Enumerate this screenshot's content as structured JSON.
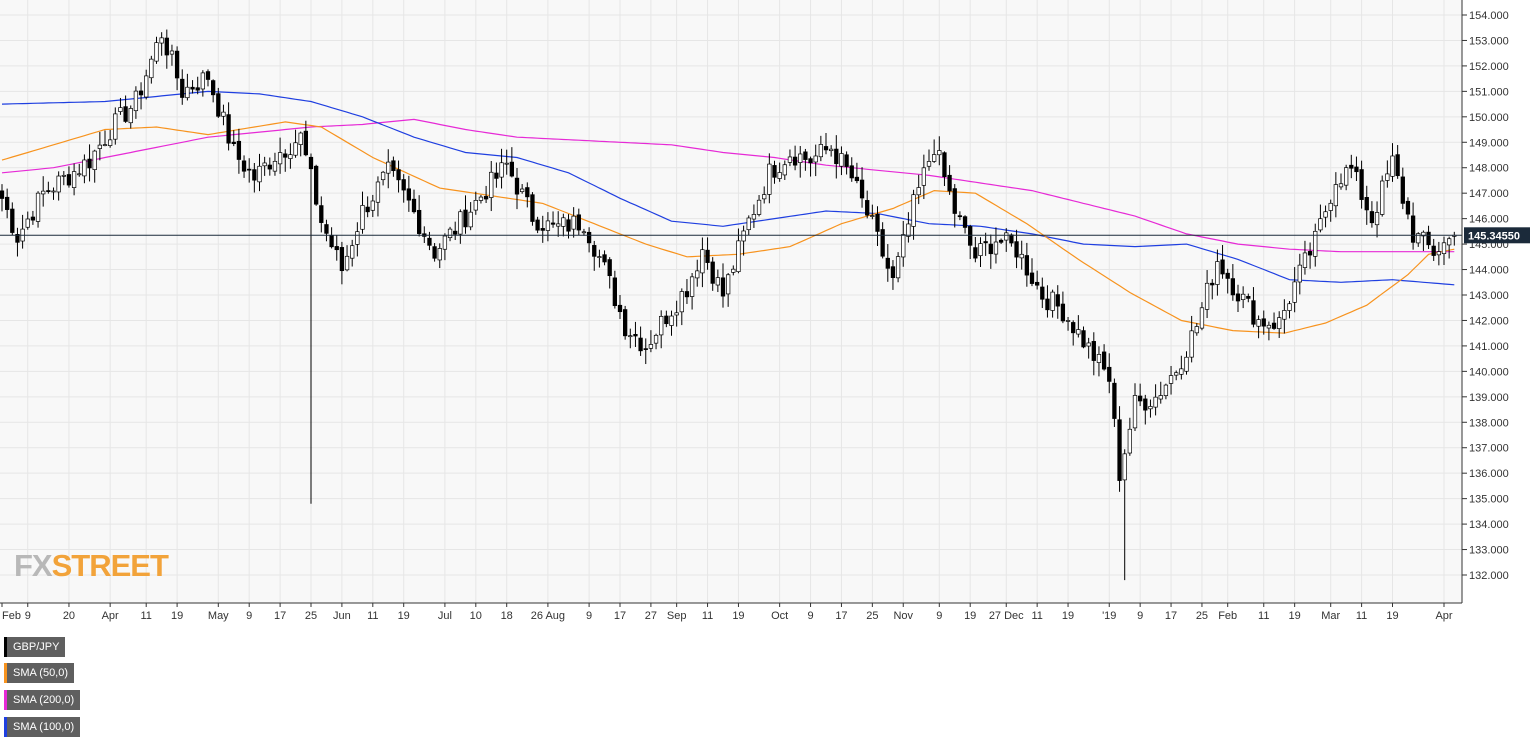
{
  "symbol": "GBP/JPY",
  "watermark": {
    "part1": "FX",
    "part2": "STREET"
  },
  "colors": {
    "background": "#f8f8f8",
    "grid": "#e6e6e6",
    "candle_up_fill": "#ffffff",
    "candle_down_fill": "#000000",
    "candle_outline": "#000000",
    "sma50": "#f7931e",
    "sma100": "#1f3fe0",
    "sma200": "#e62ad6",
    "price_tag": "#1b2a3a"
  },
  "legend": [
    {
      "label": "GBP/JPY",
      "color": "#000000"
    },
    {
      "label": "SMA (50,0)",
      "color": "#f7931e"
    },
    {
      "label": "SMA (200,0)",
      "color": "#e62ad6"
    },
    {
      "label": "SMA (100,0)",
      "color": "#1f3fe0"
    }
  ],
  "last_price_label": "145.34550",
  "chart_data": {
    "type": "candlestick",
    "title": "",
    "grid": true,
    "legend_position": "top-left",
    "y_axis_position": "right",
    "ylim": [
      131.5,
      154.5
    ],
    "y_ticks": [
      "132.000",
      "133.000",
      "134.000",
      "135.000",
      "136.000",
      "137.000",
      "138.000",
      "139.000",
      "140.000",
      "141.000",
      "142.000",
      "143.000",
      "144.000",
      "145.000",
      "146.000",
      "147.000",
      "148.000",
      "149.000",
      "150.000",
      "151.000",
      "152.000",
      "153.000",
      "154.000"
    ],
    "x_labels": [
      {
        "label": "Feb",
        "i": 0
      },
      {
        "label": "9",
        "i": 5
      },
      {
        "label": "20",
        "i": 13
      },
      {
        "label": "Apr",
        "i": 21
      },
      {
        "label": "11",
        "i": 28
      },
      {
        "label": "19",
        "i": 34
      },
      {
        "label": "May",
        "i": 42
      },
      {
        "label": "9",
        "i": 48
      },
      {
        "label": "17",
        "i": 54
      },
      {
        "label": "25",
        "i": 60
      },
      {
        "label": "Jun",
        "i": 66
      },
      {
        "label": "11",
        "i": 72
      },
      {
        "label": "19",
        "i": 78
      },
      {
        "label": "Jul",
        "i": 86
      },
      {
        "label": "10",
        "i": 92
      },
      {
        "label": "18",
        "i": 98
      },
      {
        "label": "26 Aug",
        "i": 106
      },
      {
        "label": "9",
        "i": 114
      },
      {
        "label": "17",
        "i": 120
      },
      {
        "label": "27",
        "i": 126
      },
      {
        "label": "Sep",
        "i": 131
      },
      {
        "label": "11",
        "i": 137
      },
      {
        "label": "19",
        "i": 143
      },
      {
        "label": "Oct",
        "i": 151
      },
      {
        "label": "9",
        "i": 157
      },
      {
        "label": "17",
        "i": 163
      },
      {
        "label": "25",
        "i": 169
      },
      {
        "label": "Nov",
        "i": 175
      },
      {
        "label": "9",
        "i": 182
      },
      {
        "label": "19",
        "i": 188
      },
      {
        "label": "27 Dec",
        "i": 195
      },
      {
        "label": "11",
        "i": 201
      },
      {
        "label": "19",
        "i": 207
      },
      {
        "label": "'19",
        "i": 215
      },
      {
        "label": "9",
        "i": 221
      },
      {
        "label": "17",
        "i": 227
      },
      {
        "label": "25",
        "i": 233
      },
      {
        "label": "Feb",
        "i": 238
      },
      {
        "label": "11",
        "i": 245
      },
      {
        "label": "19",
        "i": 251
      },
      {
        "label": "Mar",
        "i": 258
      },
      {
        "label": "11",
        "i": 264
      },
      {
        "label": "19",
        "i": 270
      },
      {
        "label": "Apr",
        "i": 280
      }
    ],
    "close_anchors": [
      [
        0,
        146.8
      ],
      [
        3,
        145.3
      ],
      [
        8,
        147.0
      ],
      [
        13,
        147.7
      ],
      [
        17,
        148.3
      ],
      [
        21,
        149.5
      ],
      [
        26,
        150.6
      ],
      [
        31,
        153.3
      ],
      [
        35,
        151.0
      ],
      [
        40,
        151.6
      ],
      [
        45,
        148.6
      ],
      [
        49,
        147.6
      ],
      [
        53,
        148.5
      ],
      [
        58,
        149.2
      ],
      [
        62,
        145.9
      ],
      [
        66,
        144.0
      ],
      [
        70,
        146.3
      ],
      [
        75,
        147.8
      ],
      [
        79,
        146.6
      ],
      [
        84,
        144.7
      ],
      [
        88,
        145.6
      ],
      [
        93,
        146.9
      ],
      [
        98,
        148.1
      ],
      [
        103,
        146.1
      ],
      [
        107,
        145.6
      ],
      [
        113,
        145.9
      ],
      [
        117,
        144.0
      ],
      [
        121,
        141.8
      ],
      [
        125,
        141.0
      ],
      [
        129,
        142.2
      ],
      [
        133,
        143.3
      ],
      [
        136,
        144.8
      ],
      [
        140,
        143.0
      ],
      [
        145,
        145.9
      ],
      [
        149,
        147.8
      ],
      [
        153,
        148.6
      ],
      [
        157,
        148.3
      ],
      [
        161,
        148.8
      ],
      [
        165,
        147.6
      ],
      [
        169,
        145.7
      ],
      [
        173,
        143.5
      ],
      [
        177,
        146.5
      ],
      [
        181,
        148.9
      ],
      [
        185,
        146.3
      ],
      [
        189,
        144.5
      ],
      [
        193,
        145.2
      ],
      [
        197,
        144.8
      ],
      [
        202,
        143.0
      ],
      [
        206,
        142.4
      ],
      [
        210,
        141.2
      ],
      [
        215,
        139.7
      ],
      [
        217,
        136.0
      ],
      [
        220,
        138.7
      ],
      [
        224,
        139.0
      ],
      [
        228,
        140.1
      ],
      [
        232,
        141.8
      ],
      [
        236,
        144.4
      ],
      [
        240,
        143.1
      ],
      [
        244,
        142.0
      ],
      [
        248,
        141.9
      ],
      [
        251,
        143.4
      ],
      [
        255,
        145.1
      ],
      [
        259,
        147.6
      ],
      [
        262,
        147.9
      ],
      [
        266,
        146.0
      ],
      [
        270,
        148.2
      ],
      [
        274,
        145.4
      ],
      [
        278,
        144.7
      ],
      [
        282,
        145.3
      ]
    ],
    "count": 283,
    "last_close": 145.3455,
    "spikes": [
      {
        "i": 60,
        "low": 134.8
      },
      {
        "i": 218,
        "low": 131.8
      }
    ],
    "sma50_anchors": [
      [
        0,
        148.3
      ],
      [
        20,
        149.5
      ],
      [
        30,
        149.6
      ],
      [
        40,
        149.3
      ],
      [
        55,
        149.8
      ],
      [
        62,
        149.6
      ],
      [
        72,
        148.4
      ],
      [
        85,
        147.2
      ],
      [
        95,
        146.9
      ],
      [
        105,
        146.6
      ],
      [
        115,
        145.8
      ],
      [
        125,
        145.0
      ],
      [
        133,
        144.5
      ],
      [
        143,
        144.6
      ],
      [
        153,
        144.9
      ],
      [
        163,
        145.8
      ],
      [
        173,
        146.4
      ],
      [
        181,
        147.1
      ],
      [
        189,
        147.0
      ],
      [
        199,
        145.8
      ],
      [
        209,
        144.4
      ],
      [
        219,
        143.1
      ],
      [
        229,
        142.0
      ],
      [
        239,
        141.6
      ],
      [
        249,
        141.5
      ],
      [
        257,
        141.9
      ],
      [
        265,
        142.6
      ],
      [
        273,
        143.8
      ],
      [
        277,
        144.6
      ],
      [
        282,
        144.8
      ]
    ],
    "sma100_anchors": [
      [
        0,
        150.5
      ],
      [
        20,
        150.6
      ],
      [
        30,
        150.8
      ],
      [
        40,
        151.0
      ],
      [
        50,
        150.9
      ],
      [
        60,
        150.6
      ],
      [
        70,
        150.0
      ],
      [
        80,
        149.2
      ],
      [
        90,
        148.6
      ],
      [
        100,
        148.4
      ],
      [
        110,
        147.8
      ],
      [
        120,
        146.8
      ],
      [
        130,
        145.9
      ],
      [
        140,
        145.7
      ],
      [
        150,
        146.0
      ],
      [
        160,
        146.3
      ],
      [
        170,
        146.2
      ],
      [
        180,
        145.8
      ],
      [
        190,
        145.7
      ],
      [
        200,
        145.4
      ],
      [
        210,
        145.0
      ],
      [
        220,
        144.9
      ],
      [
        230,
        145.0
      ],
      [
        240,
        144.4
      ],
      [
        250,
        143.6
      ],
      [
        260,
        143.5
      ],
      [
        270,
        143.6
      ],
      [
        282,
        143.4
      ]
    ],
    "sma200_anchors": [
      [
        0,
        147.8
      ],
      [
        10,
        148.0
      ],
      [
        20,
        148.4
      ],
      [
        30,
        148.8
      ],
      [
        40,
        149.2
      ],
      [
        50,
        149.4
      ],
      [
        60,
        149.6
      ],
      [
        70,
        149.7
      ],
      [
        80,
        149.9
      ],
      [
        90,
        149.5
      ],
      [
        100,
        149.2
      ],
      [
        110,
        149.1
      ],
      [
        120,
        149.0
      ],
      [
        130,
        148.9
      ],
      [
        140,
        148.6
      ],
      [
        150,
        148.4
      ],
      [
        160,
        148.1
      ],
      [
        170,
        147.9
      ],
      [
        180,
        147.7
      ],
      [
        190,
        147.4
      ],
      [
        200,
        147.1
      ],
      [
        210,
        146.6
      ],
      [
        220,
        146.1
      ],
      [
        230,
        145.4
      ],
      [
        240,
        145.0
      ],
      [
        250,
        144.8
      ],
      [
        260,
        144.7
      ],
      [
        270,
        144.7
      ],
      [
        282,
        144.7
      ]
    ]
  }
}
